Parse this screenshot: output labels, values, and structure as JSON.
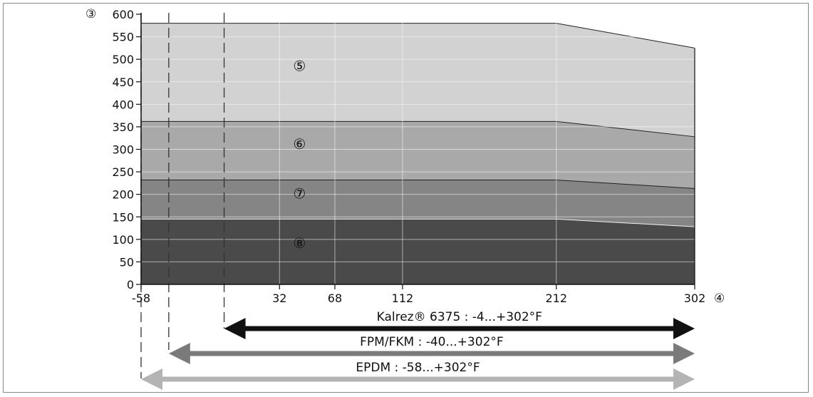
{
  "chart_data": {
    "type": "area",
    "y_axis_marker": "③",
    "x_axis_marker": "④",
    "x_ticks": [
      -58,
      32,
      68,
      112,
      212,
      302
    ],
    "y_ticks": [
      0,
      50,
      100,
      150,
      200,
      250,
      300,
      350,
      400,
      450,
      500,
      550,
      600
    ],
    "xlim": [
      -58,
      302
    ],
    "ylim": [
      0,
      600
    ],
    "grid": true,
    "series": [
      {
        "name": "⑤",
        "color": "#d2d2d2",
        "points": [
          [
            -58,
            580
          ],
          [
            212,
            580
          ],
          [
            302,
            525
          ]
        ]
      },
      {
        "name": "⑥",
        "color": "#a9a9a9",
        "points": [
          [
            -58,
            362
          ],
          [
            212,
            362
          ],
          [
            302,
            328
          ]
        ]
      },
      {
        "name": "⑦",
        "color": "#858585",
        "points": [
          [
            -58,
            232
          ],
          [
            212,
            232
          ],
          [
            302,
            213
          ]
        ]
      },
      {
        "name": "⑧",
        "color": "#4a4a4a",
        "points": [
          [
            -58,
            145
          ],
          [
            212,
            145
          ],
          [
            302,
            128
          ]
        ]
      }
    ],
    "label_anchor_x": 45,
    "label_values_y": [
      485,
      312,
      202,
      92
    ],
    "dashed_lines_x": [
      -58,
      -40,
      -4
    ],
    "ranges": [
      {
        "label": "Kalrez® 6375 : -4...+302°F",
        "from": -4,
        "to": 302,
        "color": "#111111"
      },
      {
        "label": "FPM/FKM : -40...+302°F",
        "from": -40,
        "to": 302,
        "color": "#7a7a7a"
      },
      {
        "label": "EPDM : -58...+302°F",
        "from": -58,
        "to": 302,
        "color": "#b4b4b4"
      }
    ]
  }
}
